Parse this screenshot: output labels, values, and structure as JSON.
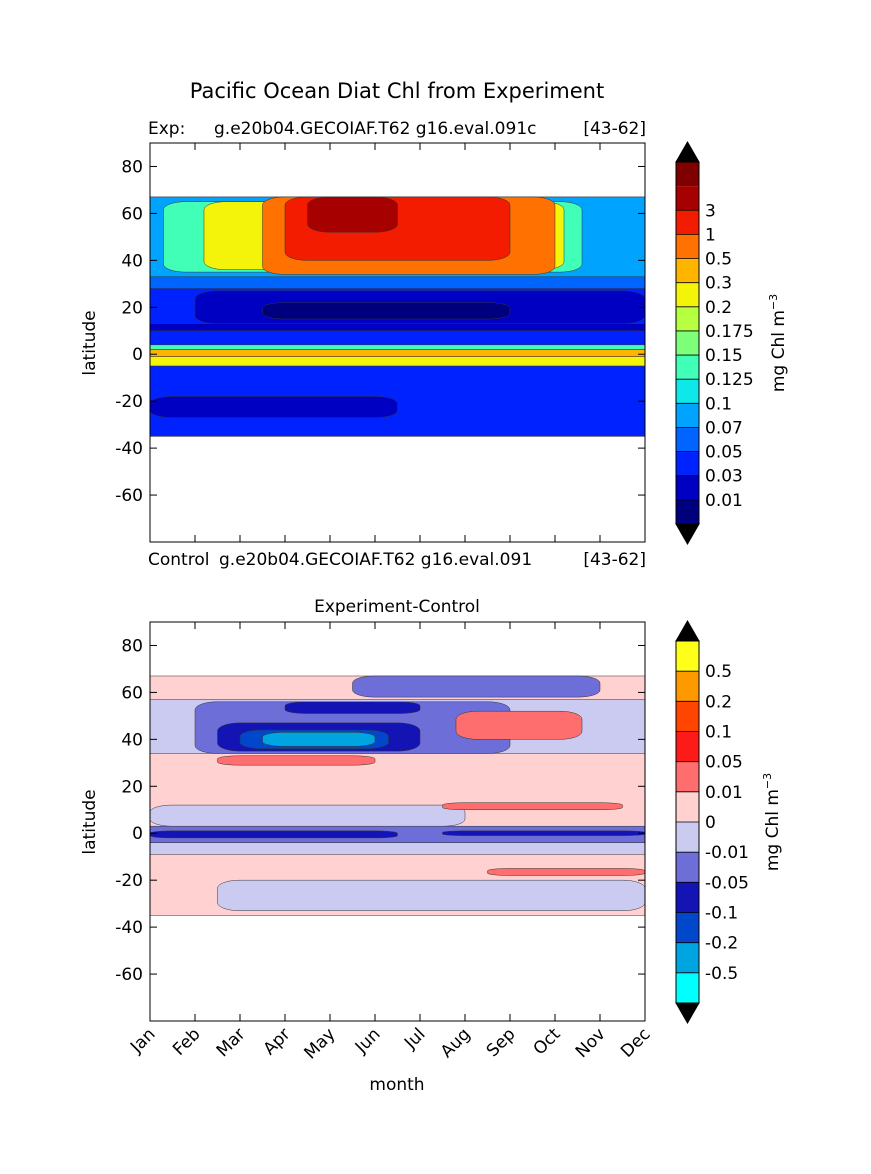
{
  "figure": {
    "title": "Pacific Ocean Diat Chl from Experiment"
  },
  "chart_data": [
    {
      "type": "heatmap",
      "panel": "top",
      "subtitle_left": "Exp:",
      "subtitle_center": "g.e20b04.GECOIAF.T62 g16.eval.091c",
      "subtitle_right": "[43-62]",
      "bottom_left": "Control",
      "bottom_center": "g.e20b04.GECOIAF.T62 g16.eval.091",
      "bottom_right": "[43-62]",
      "ylabel": "latitude",
      "xlabel": "",
      "xlim": [
        0,
        11
      ],
      "ylim": [
        -80,
        90
      ],
      "yticks": [
        "80",
        "60",
        "40",
        "20",
        "0",
        "-20",
        "-40",
        "-60"
      ],
      "ytick_values": [
        80,
        60,
        40,
        20,
        0,
        -20,
        -40,
        -60
      ],
      "data_lat_range": [
        -35,
        67
      ],
      "colorbar": {
        "label": "mg Chl m",
        "label_sup": "−3",
        "levels": [
          "0.01",
          "0.03",
          "0.05",
          "0.07",
          "0.1",
          "0.125",
          "0.15",
          "0.175",
          "0.2",
          "0.3",
          "0.5",
          "1",
          "3"
        ],
        "colors": [
          "#00007f",
          "#0000c3",
          "#0022ff",
          "#0064ff",
          "#00a4ff",
          "#0ee8ea",
          "#41ffb6",
          "#7dff7a",
          "#b6ff41",
          "#f3f40a",
          "#ffb400",
          "#ff7100",
          "#f31b00",
          "#a60000",
          "#7f0000"
        ],
        "under_color": "#000000",
        "over_color": "#000000"
      },
      "regions": [
        {
          "band": [
            -35,
            67
          ],
          "months": [
            0,
            11
          ],
          "level": 2
        },
        {
          "band": [
            -27,
            -18
          ],
          "months": [
            0,
            5.5
          ],
          "level": 1
        },
        {
          "band": [
            -15,
            -5
          ],
          "months": [
            0,
            11
          ],
          "level": 2
        },
        {
          "band": [
            -5,
            -1
          ],
          "months": [
            0,
            11
          ],
          "level": 9
        },
        {
          "band": [
            -1,
            2
          ],
          "months": [
            0,
            11
          ],
          "level": 10
        },
        {
          "band": [
            2,
            4
          ],
          "months": [
            0,
            11
          ],
          "level": 6
        },
        {
          "band": [
            10,
            13
          ],
          "months": [
            0,
            11
          ],
          "level": 1
        },
        {
          "band": [
            13,
            27
          ],
          "months": [
            1,
            11
          ],
          "level": 1
        },
        {
          "band": [
            15,
            22
          ],
          "months": [
            2.5,
            8
          ],
          "level": 0
        },
        {
          "band": [
            28,
            34
          ],
          "months": [
            0,
            11
          ],
          "level": 3
        },
        {
          "band": [
            33,
            67
          ],
          "months": [
            0,
            11
          ],
          "level": 4
        },
        {
          "band": [
            35,
            65
          ],
          "months": [
            0.3,
            9.6
          ],
          "level": 6
        },
        {
          "band": [
            36,
            65
          ],
          "months": [
            1.2,
            9.2
          ],
          "level": 9
        },
        {
          "band": [
            34,
            67
          ],
          "months": [
            2.5,
            9
          ],
          "level": 11
        },
        {
          "band": [
            40,
            67
          ],
          "months": [
            3,
            8
          ],
          "level": 12
        },
        {
          "band": [
            52,
            67
          ],
          "months": [
            3.5,
            5.5
          ],
          "level": 13
        }
      ]
    },
    {
      "type": "heatmap",
      "panel": "bottom",
      "title": "Experiment-Control",
      "ylabel": "latitude",
      "xlabel": "month",
      "categories": [
        "Jan",
        "Feb",
        "Mar",
        "Apr",
        "May",
        "Jun",
        "Jul",
        "Aug",
        "Sep",
        "Oct",
        "Nov",
        "Dec"
      ],
      "xlim": [
        0,
        11
      ],
      "ylim": [
        -80,
        90
      ],
      "yticks": [
        "80",
        "60",
        "40",
        "20",
        "0",
        "-20",
        "-40",
        "-60"
      ],
      "ytick_values": [
        80,
        60,
        40,
        20,
        0,
        -20,
        -40,
        -60
      ],
      "data_lat_range": [
        -35,
        67
      ],
      "colorbar": {
        "label": "mg Chl m",
        "label_sup": "−3",
        "levels": [
          "-0.5",
          "-0.2",
          "-0.1",
          "-0.05",
          "-0.01",
          "0",
          "0.01",
          "0.05",
          "0.1",
          "0.2",
          "0.5"
        ],
        "colors": [
          "#00ffff",
          "#00a4e0",
          "#0047cc",
          "#1414b4",
          "#6e6ed8",
          "#cbcbf2",
          "#ffd1d1",
          "#ff6e6e",
          "#ff1a1a",
          "#ff4500",
          "#ff9900",
          "#ffff1a"
        ],
        "under_color": "#000000",
        "over_color": "#000000"
      },
      "regions": [
        {
          "band": [
            -35,
            67
          ],
          "months": [
            0,
            11
          ],
          "level": 6
        },
        {
          "band": [
            -33,
            -20
          ],
          "months": [
            1.5,
            11
          ],
          "level": 5
        },
        {
          "band": [
            -9,
            -4
          ],
          "months": [
            0,
            11
          ],
          "level": 5
        },
        {
          "band": [
            -4,
            3
          ],
          "months": [
            0,
            11
          ],
          "level": 4
        },
        {
          "band": [
            -2,
            1
          ],
          "months": [
            0,
            5.5
          ],
          "level": 3
        },
        {
          "band": [
            -1,
            1
          ],
          "months": [
            6.5,
            11
          ],
          "level": 3
        },
        {
          "band": [
            3,
            12
          ],
          "months": [
            0,
            7
          ],
          "level": 5
        },
        {
          "band": [
            10,
            13
          ],
          "months": [
            6.5,
            10.5
          ],
          "level": 7
        },
        {
          "band": [
            -18,
            -15
          ],
          "months": [
            7.5,
            11
          ],
          "level": 7
        },
        {
          "band": [
            29,
            33
          ],
          "months": [
            1.5,
            5
          ],
          "level": 7
        },
        {
          "band": [
            34,
            57
          ],
          "months": [
            0,
            11
          ],
          "level": 5
        },
        {
          "band": [
            34,
            56
          ],
          "months": [
            1,
            8
          ],
          "level": 4
        },
        {
          "band": [
            35,
            47
          ],
          "months": [
            1.5,
            6
          ],
          "level": 3
        },
        {
          "band": [
            36,
            44
          ],
          "months": [
            2,
            5.3
          ],
          "level": 2
        },
        {
          "band": [
            37,
            43
          ],
          "months": [
            2.5,
            5
          ],
          "level": 1
        },
        {
          "band": [
            51,
            56
          ],
          "months": [
            3,
            6
          ],
          "level": 3
        },
        {
          "band": [
            40,
            52
          ],
          "months": [
            6.8,
            9.6
          ],
          "level": 7
        },
        {
          "band": [
            58,
            67
          ],
          "months": [
            4.5,
            10
          ],
          "level": 4
        }
      ]
    }
  ]
}
